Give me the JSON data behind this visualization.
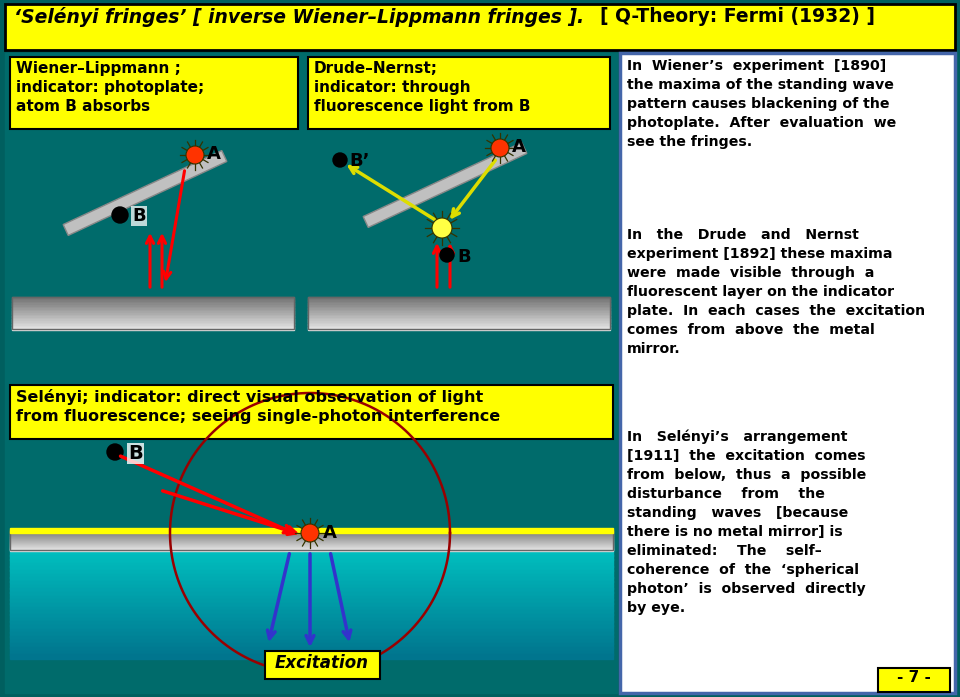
{
  "bg_color": "#005f5f",
  "title_bg": "#ffff00",
  "title_text": "‘Selényi fringes’ [ inverse Wiener–Lippmann fringes ].",
  "title_right": "[ Q-Theory: Fermi (1932) ]",
  "right_panel_bg": "#ffffff",
  "right_panel_border": "#4466aa",
  "page_num": "- 7 -",
  "panel1_bg": "#ffff00",
  "panel1_text": "Wiener–Lippmann ;\nindicator: photoplate;\natom B absorbs",
  "panel2_bg": "#ffff00",
  "panel2_text": "Drude–Nernst;\nindicator: through\nfluorescence light from B",
  "panel3_bg": "#ffff00",
  "panel3_text": "Selényi; indicator: direct visual observation of light\nfrom fluorescence; seeing single-photon interference",
  "excitation_text": "Excitation"
}
